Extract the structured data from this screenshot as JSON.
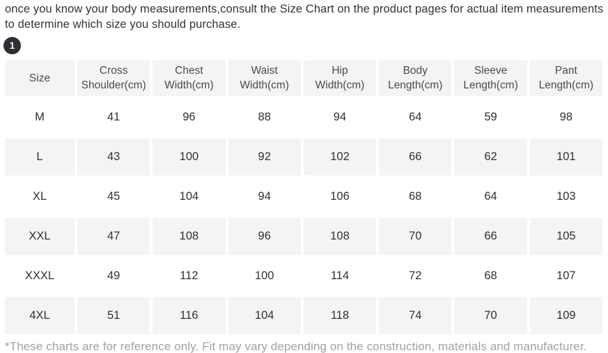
{
  "intro": {
    "text": "once you know your body measurements,consult the Size Chart on the product pages for actual item measurements to determine which size you should purchase."
  },
  "step_badge": {
    "label": "1"
  },
  "size_chart": {
    "columns": [
      "Size",
      "Cross Shoulder(cm)",
      "Chest Width(cm)",
      "Waist Width(cm)",
      "Hip Width(cm)",
      "Body Length(cm)",
      "Sleeve Length(cm)",
      "Pant Length(cm)"
    ],
    "rows": [
      {
        "size": "M",
        "values": [
          41,
          96,
          88,
          94,
          64,
          59,
          98
        ]
      },
      {
        "size": "L",
        "values": [
          43,
          100,
          92,
          102,
          66,
          62,
          101
        ]
      },
      {
        "size": "XL",
        "values": [
          45,
          104,
          94,
          106,
          68,
          64,
          103
        ]
      },
      {
        "size": "XXL",
        "values": [
          47,
          108,
          96,
          108,
          70,
          66,
          105
        ]
      },
      {
        "size": "XXXL",
        "values": [
          49,
          112,
          100,
          114,
          72,
          68,
          107
        ]
      },
      {
        "size": "4XL",
        "values": [
          51,
          116,
          104,
          118,
          74,
          70,
          109
        ]
      }
    ]
  },
  "footnote": {
    "text": "*These charts are for reference only. Fit may vary depending on the construction, materials and manufacturer."
  },
  "colors": {
    "row_stripe": "#f4f4f6",
    "body_text": "#333333",
    "muted_text": "#a2a2a2",
    "badge_background": "#2e2e36"
  }
}
